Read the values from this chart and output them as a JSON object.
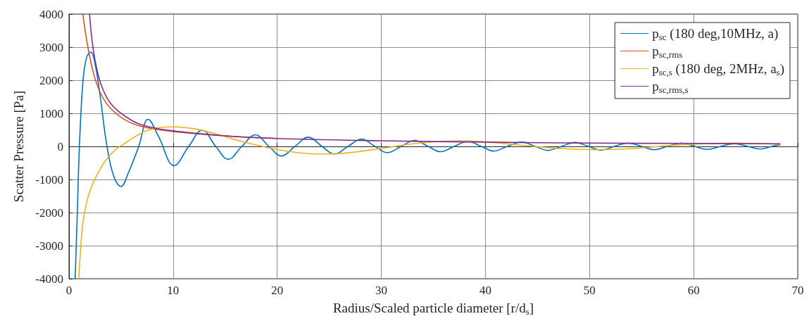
{
  "chart_data": {
    "type": "line",
    "xlabel": "Radius/Scaled particle diameter [r/d$_{s}$]",
    "ylabel": "Scatter Pressure [Pa]",
    "xlim": [
      0,
      70
    ],
    "xticks": [
      0,
      10,
      20,
      30,
      40,
      50,
      60,
      70
    ],
    "ylim": [
      -4000,
      4000
    ],
    "yticks": [
      -4000,
      -3000,
      -2000,
      -1000,
      0,
      1000,
      2000,
      3000,
      4000
    ],
    "grid": true,
    "legend": "top right",
    "series": [
      {
        "name": "p$_{sc}$ (180 deg,10MHz, a)",
        "color": "#0072bd",
        "x": [
          0.59,
          0.8,
          1.0,
          1.35,
          1.7,
          2.1,
          2.5,
          3.0,
          3.65,
          4.3,
          5.0,
          5.7,
          6.7,
          7.6,
          8.6,
          10.1,
          11.5,
          12.8,
          14.1,
          15.3,
          16.6,
          17.9,
          19.2,
          20.4,
          21.7,
          23.0,
          24.3,
          25.5,
          26.8,
          28.1,
          29.4,
          30.6,
          31.9,
          33.2,
          34.5,
          35.7,
          37.0,
          38.3,
          39.6,
          40.8,
          42.1,
          43.5,
          44.8,
          46.0,
          47.3,
          48.6,
          49.9,
          51.1,
          52.4,
          53.7,
          55.0,
          56.2,
          57.5,
          58.8,
          60.1,
          61.3,
          62.6,
          63.9,
          65.2,
          66.4,
          67.5,
          68.3
        ],
        "values": [
          -4000,
          -2000,
          0,
          2000,
          2700,
          2850,
          2500,
          1500,
          0,
          -900,
          -1210,
          -800,
          0,
          820,
          300,
          -580,
          0,
          490,
          0,
          -390,
          0,
          350,
          0,
          -290,
          0,
          280,
          0,
          -230,
          0,
          220,
          0,
          -190,
          0,
          180,
          0,
          -160,
          0,
          150,
          0,
          -140,
          0,
          130,
          0,
          -120,
          0,
          120,
          0,
          -110,
          0,
          100,
          0,
          -100,
          0,
          100,
          0,
          -90,
          0,
          80,
          0,
          -80,
          0,
          50
        ]
      },
      {
        "name": "p$_{sc,rms}$",
        "color": "#d95319",
        "x": [
          1.33,
          1.6,
          2.0,
          2.5,
          3.2,
          4,
          5.4,
          7,
          10,
          15,
          20
        ],
        "values": [
          4000,
          3400,
          2700,
          2050,
          1500,
          1150,
          800,
          600,
          450,
          320,
          240
        ]
      },
      {
        "name": "p$_{sc,s}$ (180 deg, 2MHz, a$_{s}$)",
        "color": "#edb120",
        "x": [
          0.93,
          1.1,
          1.35,
          2.0,
          3.2,
          4.3,
          5.4,
          7.6,
          10,
          12.1,
          14.4,
          16.6,
          19,
          22,
          24.7,
          27.5,
          30,
          33.7,
          37.7,
          41,
          44.7,
          47.5,
          50.4,
          54,
          58.3,
          63.9,
          68.3
        ],
        "values": [
          -4000,
          -3200,
          -2280,
          -1360,
          -570,
          -150,
          100,
          490,
          590,
          530,
          350,
          150,
          -30,
          -190,
          -230,
          -170,
          -60,
          100,
          170,
          110,
          0,
          -70,
          -100,
          -70,
          40,
          100,
          60
        ]
      },
      {
        "name": "p$_{sc,rms,s}$",
        "color": "#7e2f8e",
        "x": [
          1.97,
          2.3,
          2.7,
          3.2,
          4,
          5.4,
          7,
          10,
          15,
          20,
          30,
          40,
          50,
          60,
          68.3
        ],
        "values": [
          4000,
          3000,
          2300,
          1770,
          1300,
          910,
          650,
          470,
          320,
          240,
          170,
          130,
          100,
          90,
          80
        ]
      }
    ]
  }
}
